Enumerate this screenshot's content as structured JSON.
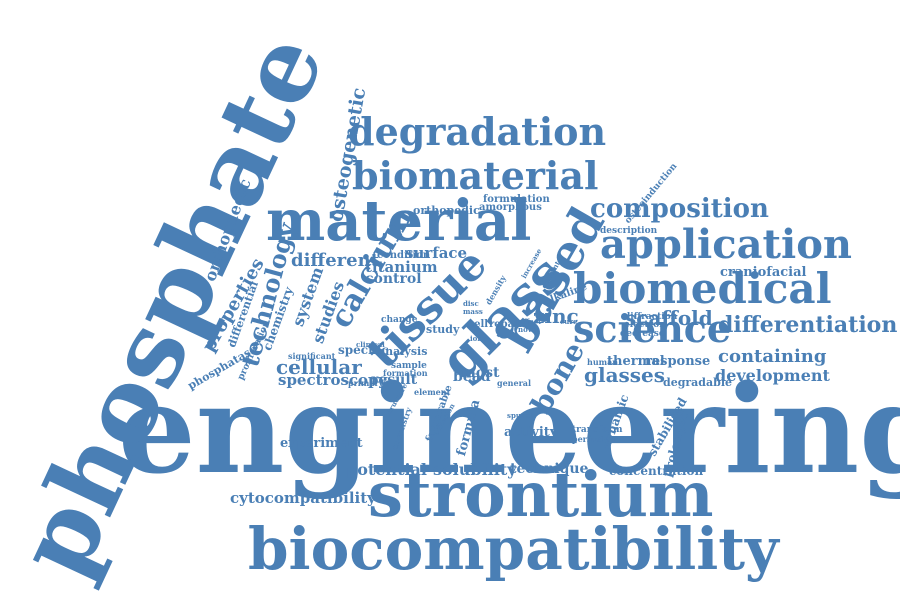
{
  "color": "#4a7fb5",
  "words": [
    "engineering",
    "phosphate",
    "strontium",
    "biocompatibility",
    "material",
    "glass",
    "tissue",
    "degradation",
    "biomaterial",
    "application",
    "biomedical",
    "based",
    "science",
    "composition",
    "calcium",
    "technology",
    "differentiation",
    "bone",
    "zinc",
    "scaffold",
    "osteogenetic",
    "orthopaedic",
    "properties",
    "containing",
    "glasses",
    "development",
    "cellular",
    "different",
    "titanium",
    "surface",
    "control",
    "studies",
    "system",
    "chemistry",
    "differential",
    "spectroscopy",
    "cytocompatibility",
    "solubility",
    "technique",
    "potential",
    "experiment",
    "activity",
    "result",
    "bead",
    "most",
    "specific",
    "analysis",
    "study",
    "cell",
    "repair",
    "thermal",
    "response",
    "stabilised",
    "prolonged",
    "concentration",
    "degradable",
    "transform",
    "perfusion",
    "dynamic",
    "craniofacial",
    "description",
    "osteoinduction",
    "formulation",
    "amorphous",
    "orthopedic",
    "condition",
    "formula",
    "phosphatase",
    "proliferation",
    "change",
    "sample",
    "formation",
    "primary",
    "general",
    "element",
    "favourable",
    "diffraction",
    "electron",
    "decrease",
    "human",
    "alkaline",
    "significant",
    "clinical",
    "density",
    "disc",
    "mass",
    "affect",
    "novel",
    "increase",
    "content",
    "spunch",
    "adhesion",
    "structure",
    "chemistry",
    "ions",
    "cure"
  ]
}
